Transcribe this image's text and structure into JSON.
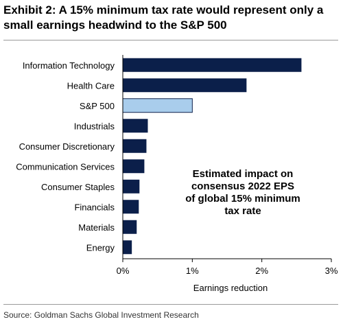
{
  "title": "Exhibit 2: A 15% minimum tax rate would represent only a small earnings headwind to the S&P 500",
  "source": "Source: Goldman Sachs Global Investment Research",
  "colors": {
    "bar": "#0b1f4a",
    "highlight": "#a9cdec",
    "highlight_border": "#0b1f4a",
    "axis": "#000000"
  },
  "chart_data": {
    "type": "bar",
    "orientation": "horizontal",
    "categories": [
      "Information Technology",
      "Health Care",
      "S&P 500",
      "Industrials",
      "Consumer Discretionary",
      "Communication Services",
      "Consumer Staples",
      "Financials",
      "Materials",
      "Energy"
    ],
    "values": [
      2.57,
      1.78,
      1.0,
      0.36,
      0.34,
      0.31,
      0.24,
      0.23,
      0.2,
      0.13
    ],
    "highlight": "S&P 500",
    "xlim": [
      0,
      3
    ],
    "xticks": [
      "0%",
      "1%",
      "2%",
      "3%"
    ],
    "xlabel": "Earnings reduction",
    "annotation": [
      "Estimated impact on",
      "consensus 2022 EPS",
      "of global 15% minimum",
      "tax rate"
    ],
    "grid": false
  }
}
